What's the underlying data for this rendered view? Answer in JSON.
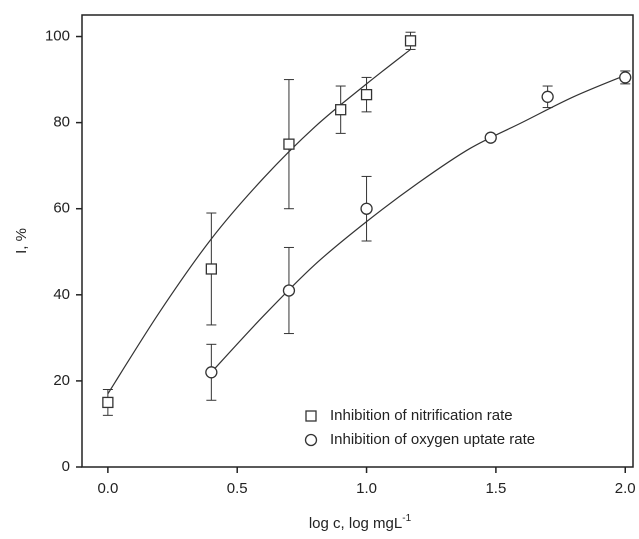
{
  "chart_data": {
    "type": "scatter",
    "x_label": "log c, log mgL",
    "x_label_sup": "-1",
    "y_label": "I, %",
    "xlim": [
      -0.1,
      2.03
    ],
    "ylim": [
      0,
      105
    ],
    "xticks": [
      {
        "value": 0,
        "label": "0.0"
      },
      {
        "value": 0.5,
        "label": "0.5"
      },
      {
        "value": 1,
        "label": "1.0"
      },
      {
        "value": 1.5,
        "label": "1.5"
      },
      {
        "value": 2,
        "label": "2.0"
      }
    ],
    "yticks": [
      0,
      20,
      40,
      60,
      80,
      100
    ],
    "series": [
      {
        "name": "Inhibition of nitrification rate",
        "marker": "square",
        "color": "#333333",
        "x": [
          0,
          0.4,
          0.7,
          0.9,
          1.0,
          1.17
        ],
        "values": [
          15,
          46,
          75,
          83,
          86.5,
          99
        ],
        "errors": [
          3,
          13,
          15,
          5.5,
          4,
          2
        ],
        "fit_x": [
          0,
          0.2,
          0.4,
          0.6,
          0.8,
          1.0,
          1.17
        ],
        "fit_values": [
          17,
          36,
          53,
          67,
          79,
          89,
          97
        ]
      },
      {
        "name": "Inhibition of oxygen uptate rate",
        "marker": "circle",
        "color": "#333333",
        "x": [
          0.4,
          0.7,
          1.0,
          1.48,
          1.7,
          2.0
        ],
        "values": [
          22,
          41,
          60,
          76.5,
          86,
          90.5
        ],
        "errors": [
          6.5,
          10,
          7.5,
          0.8,
          2.5,
          1.5
        ],
        "fit_x": [
          0.4,
          0.6,
          0.8,
          1.0,
          1.2,
          1.4,
          1.6,
          1.8,
          2.0
        ],
        "fit_values": [
          22,
          35,
          47,
          57,
          66,
          74,
          80,
          86,
          91
        ]
      }
    ]
  }
}
